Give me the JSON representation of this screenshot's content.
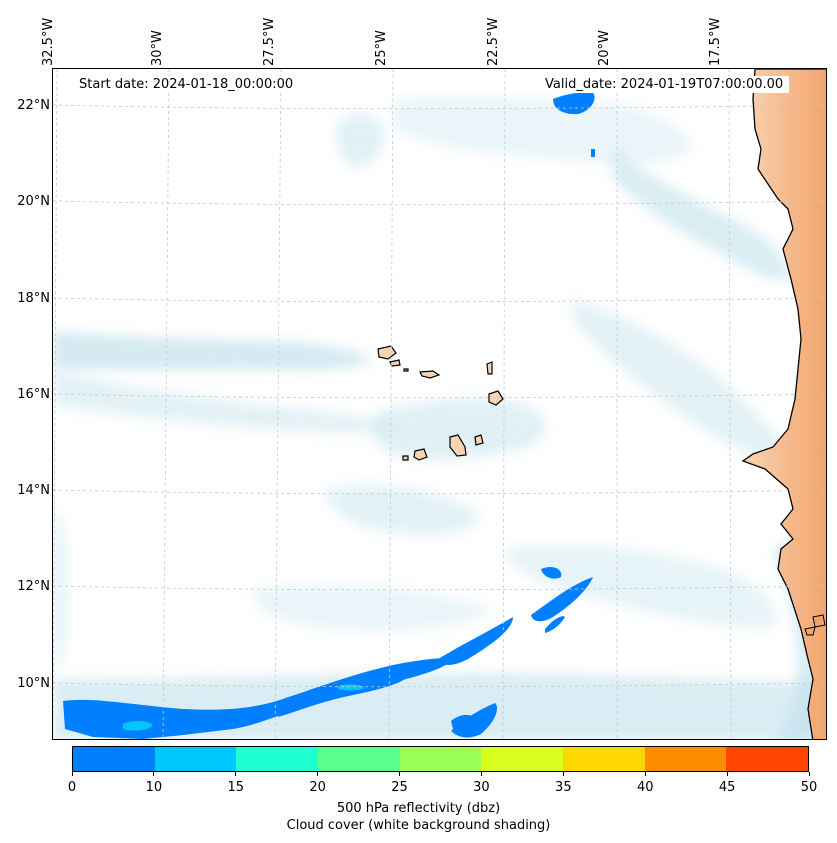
{
  "map": {
    "longitude_labels": [
      "32.5°W",
      "30°W",
      "27.5°W",
      "25°W",
      "22.5°W",
      "20°W",
      "17.5°W"
    ],
    "latitude_labels": [
      "22°N",
      "20°N",
      "18°N",
      "16°N",
      "14°N",
      "12°N",
      "10°N"
    ],
    "start_date": "Start date: 2024-01-18_00:00:00",
    "valid_date": "Valid_date: 2024-01-19T07:00:00.00",
    "colors": {
      "land": "#f6c49a",
      "land_dark": "#f0a068",
      "cloud": "#add8e6",
      "reflectivity_low": "#0080ff",
      "reflectivity_mid": "#00c8ff",
      "coastline": "#000000",
      "grid": "#c8c8c8"
    }
  },
  "colorbar": {
    "ticks": [
      "0",
      "10",
      "15",
      "20",
      "25",
      "30",
      "35",
      "40",
      "45",
      "50"
    ],
    "colors": [
      "#0080ff",
      "#00c8ff",
      "#1effd2",
      "#5aff8c",
      "#9aff55",
      "#d8ff1e",
      "#ffd700",
      "#ff8c00",
      "#ff4500"
    ],
    "label": "500 hPa reflectivity (dbz)",
    "sublabel": "Cloud cover (white background shading)"
  }
}
